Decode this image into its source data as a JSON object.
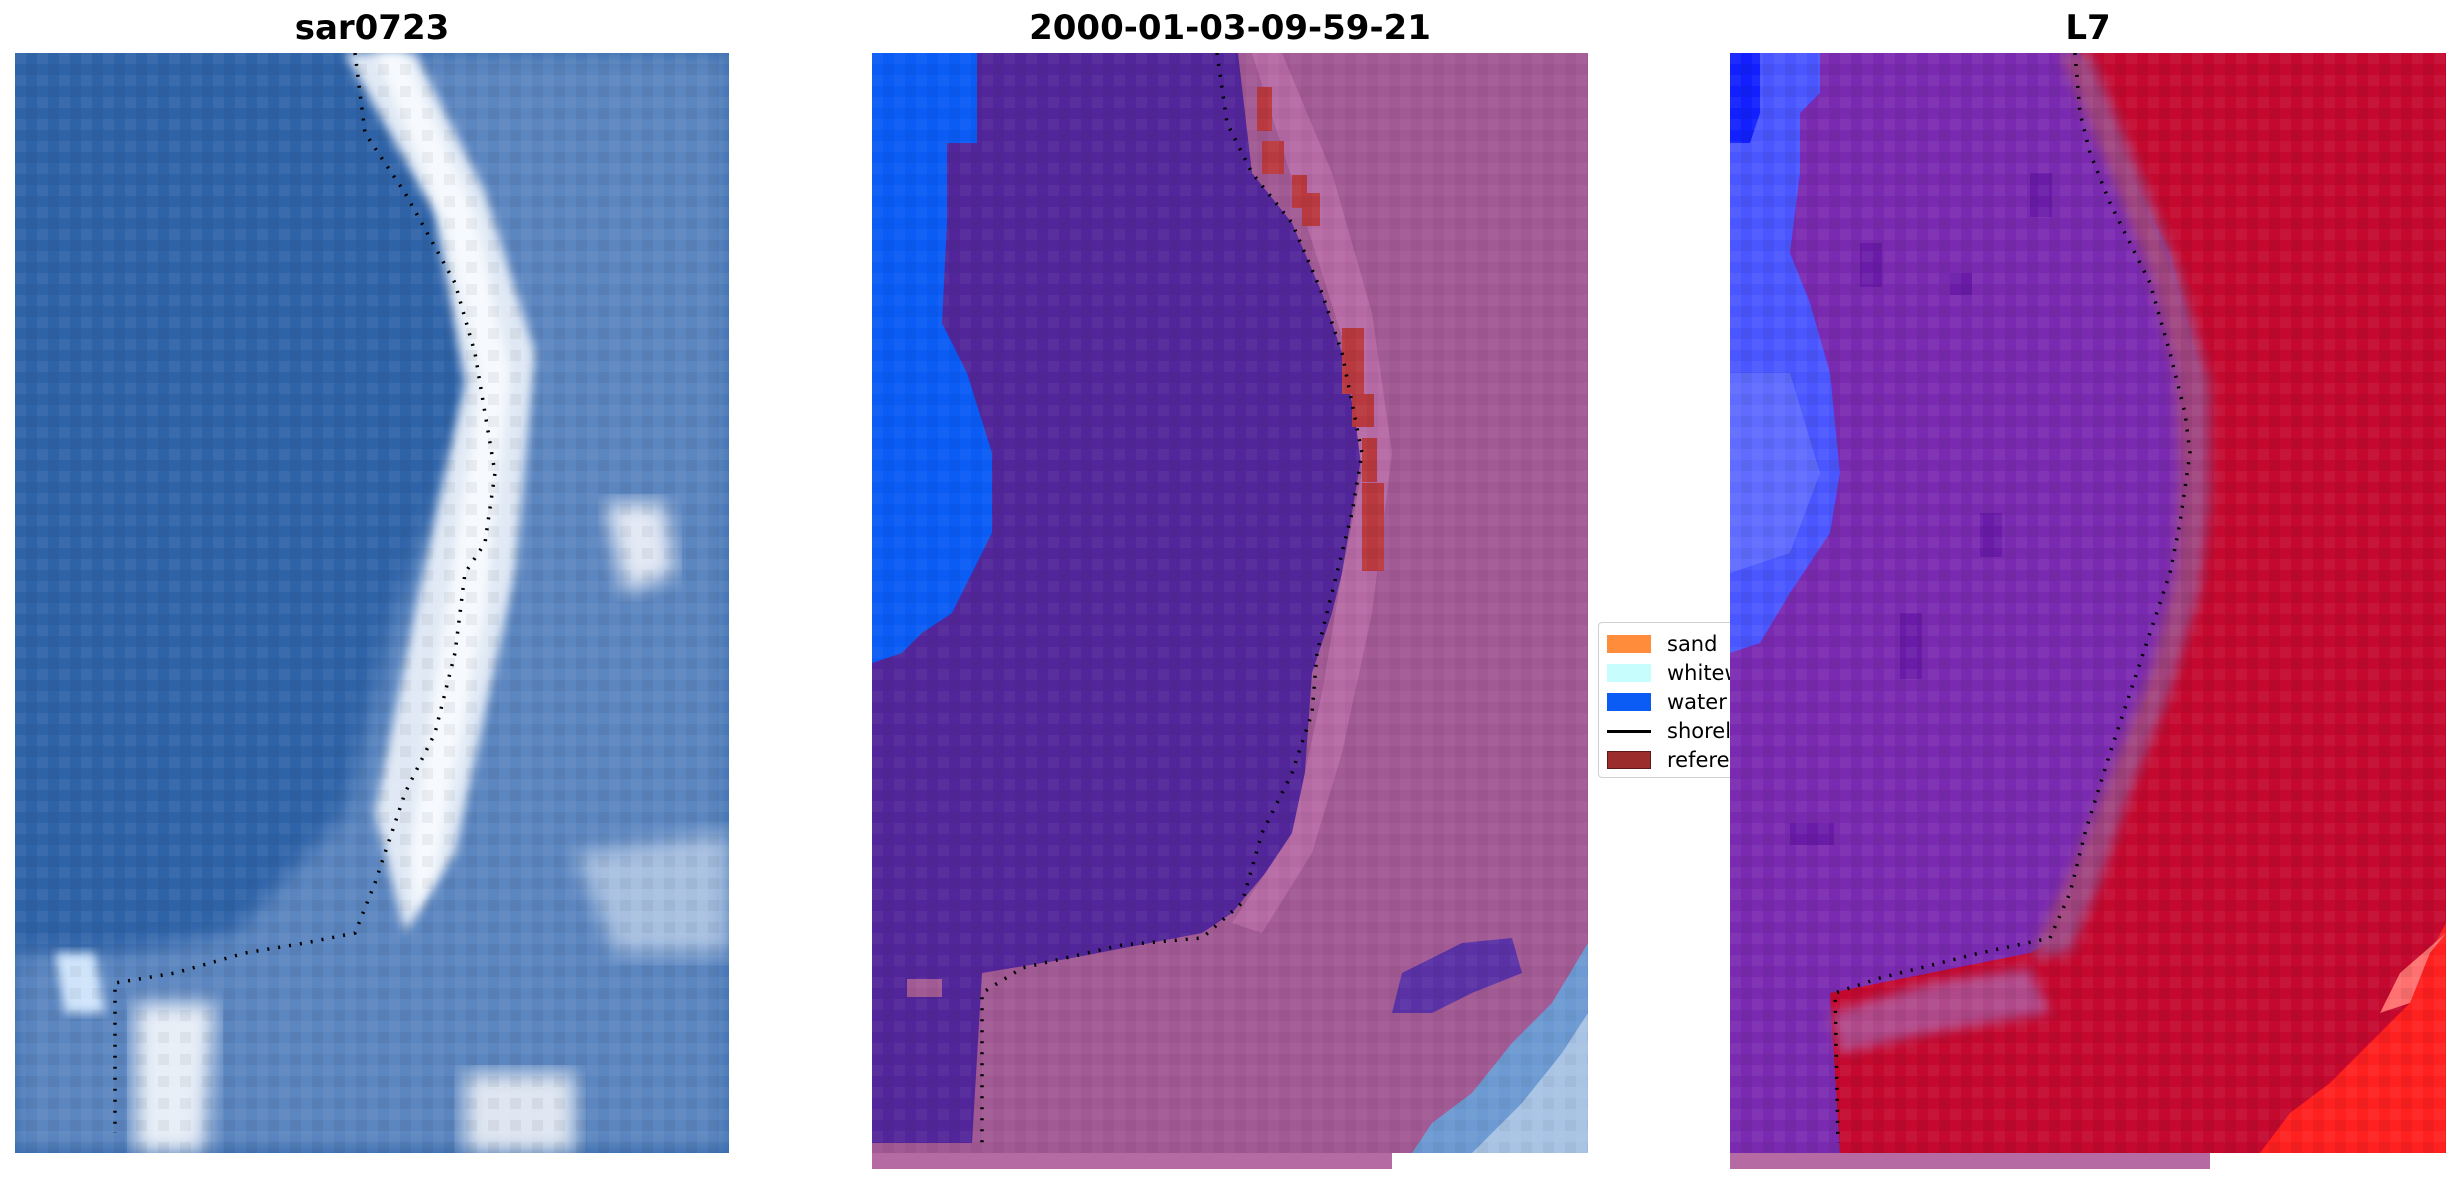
{
  "titles": {
    "left": "sar0723",
    "middle": "2000-01-03-09-59-21",
    "right": "L7"
  },
  "legend": {
    "items": [
      {
        "label": "sand",
        "color": "#ff8c3a",
        "kind": "patch"
      },
      {
        "label": "whitewater",
        "color": "#c8fdfd",
        "kind": "patch"
      },
      {
        "label": "water",
        "color": "#0a5cf5",
        "kind": "patch"
      },
      {
        "label": "shoreline",
        "color": "#000000",
        "kind": "line"
      },
      {
        "label": "reference",
        "color": "#9b2d2d",
        "kind": "patch"
      }
    ]
  },
  "colors": {
    "rgb_water": "#2f63a8",
    "rgb_surf": "#e6eef8",
    "class_water": "#0a5cf5",
    "class_other": "#52269a",
    "class_land": "#a25a94",
    "class_reference": "#b8393f",
    "index_low": "#7a2ab0",
    "index_high": "#c4082e",
    "index_blue": "#4a56ff"
  }
}
